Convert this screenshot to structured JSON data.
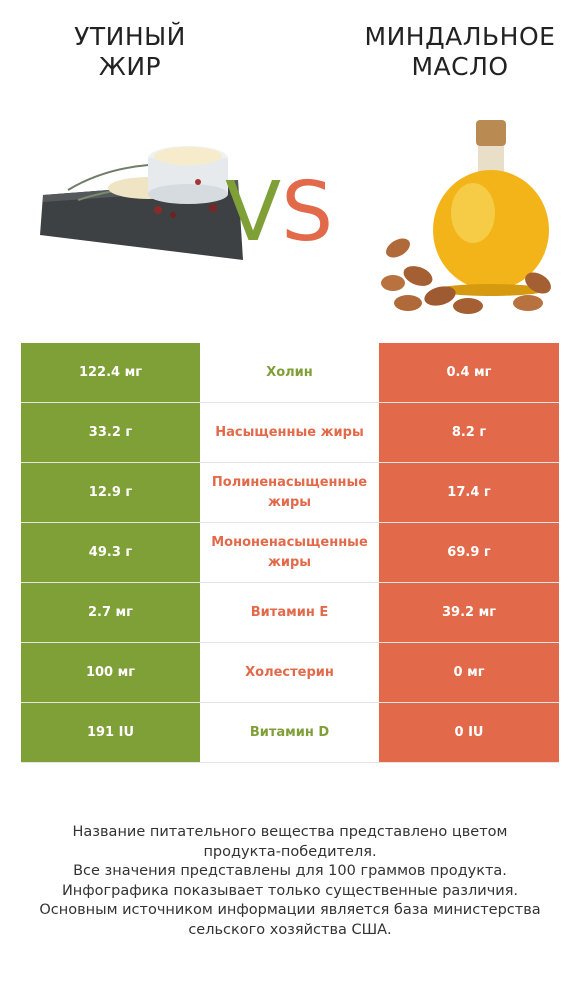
{
  "left_product": {
    "name": "УТИНЫЙ ЖИР",
    "color": "#7f9f37"
  },
  "right_product": {
    "name": "МИНДАЛЬНОЕ МАСЛО",
    "color": "#e26a4a"
  },
  "vs": {
    "v": "V",
    "s": "S"
  },
  "rows": [
    {
      "left": "122.4 мг",
      "label": "Холин",
      "right": "0.4 мг",
      "winner": "left"
    },
    {
      "left": "33.2 г",
      "label": "Насыщенные жиры",
      "right": "8.2 г",
      "winner": "right"
    },
    {
      "left": "12.9 г",
      "label": "Полиненасыщенные жиры",
      "right": "17.4 г",
      "winner": "right"
    },
    {
      "left": "49.3 г",
      "label": "Мононенасыщенные жиры",
      "right": "69.9 г",
      "winner": "right"
    },
    {
      "left": "2.7 мг",
      "label": "Витамин E",
      "right": "39.2 мг",
      "winner": "right"
    },
    {
      "left": "100 мг",
      "label": "Холестерин",
      "right": "0 мг",
      "winner": "right"
    },
    {
      "left": "191 IU",
      "label": "Витамин D",
      "right": "0 IU",
      "winner": "left"
    }
  ],
  "footnote": [
    "Название питательного вещества представлено цветом",
    "продукта-победителя.",
    "Все значения представлены для 100 граммов продукта.",
    "Инфографика показывает только существенные различия.",
    "Основным источником информации является база министерства",
    "сельского хозяйства США."
  ]
}
